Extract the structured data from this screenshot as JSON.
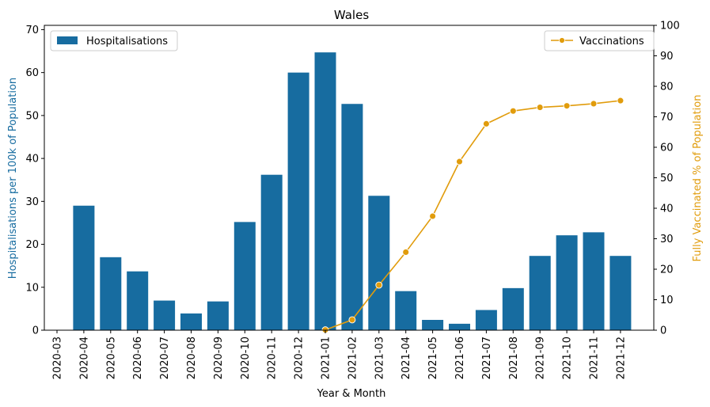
{
  "chart_data": {
    "type": "bar",
    "title": "Wales",
    "xlabel": "Year & Month",
    "ylabel": "Hospitalisations per 100k of Population",
    "y2label": "Fully Vaccinated % of Population",
    "ylim": [
      0,
      71
    ],
    "y2lim": [
      0,
      100
    ],
    "yticks": [
      0,
      10,
      20,
      30,
      40,
      50,
      60,
      70
    ],
    "y2ticks": [
      0,
      10,
      20,
      30,
      40,
      50,
      60,
      70,
      80,
      90,
      100
    ],
    "grid": false,
    "categories": [
      "2020-03",
      "2020-04",
      "2020-05",
      "2020-06",
      "2020-07",
      "2020-08",
      "2020-09",
      "2020-10",
      "2020-11",
      "2020-12",
      "2021-01",
      "2021-02",
      "2021-03",
      "2021-04",
      "2021-05",
      "2021-06",
      "2021-07",
      "2021-08",
      "2021-09",
      "2021-10",
      "2021-11",
      "2021-12"
    ],
    "series": [
      {
        "name": "Hospitalisations",
        "type": "bar",
        "axis": "left",
        "color": "#176ca0",
        "values": [
          0,
          29.0,
          17.0,
          13.7,
          6.9,
          3.9,
          6.7,
          25.2,
          36.2,
          60.0,
          64.7,
          52.7,
          31.3,
          9.1,
          2.4,
          1.5,
          4.7,
          9.8,
          17.3,
          22.1,
          22.8,
          17.3
        ]
      },
      {
        "name": "Vaccinations",
        "type": "line",
        "axis": "right",
        "color": "#e19c0c",
        "values": [
          null,
          null,
          null,
          null,
          null,
          null,
          null,
          null,
          null,
          null,
          0.1,
          3.4,
          14.8,
          25.6,
          37.4,
          55.3,
          67.7,
          71.9,
          73.1,
          73.6,
          74.3,
          75.3
        ]
      }
    ],
    "legend": [
      {
        "position": "top-left",
        "label": "Hospitalisations"
      },
      {
        "position": "top-right",
        "label": "Vaccinations"
      }
    ]
  }
}
